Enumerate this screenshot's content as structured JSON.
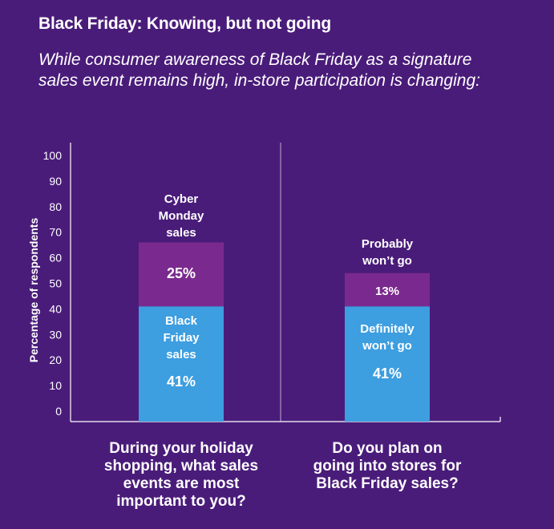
{
  "header": {
    "title": "Black Friday: Knowing, but not going",
    "subtitle": "While consumer awareness of Black Friday as a signature sales event remains high, in-store participation is changing:"
  },
  "colors": {
    "background": "#4a1c7a",
    "bar_bottom": "#3d9ee0",
    "bar_top": "#7a2a8e",
    "axis": "#ffffff",
    "tick_text": "#d8cce6"
  },
  "chart_data": {
    "type": "bar",
    "stacked": true,
    "ylabel": "Percentage of respondents",
    "ylim": [
      0,
      100
    ],
    "yticks": [
      0,
      10,
      20,
      30,
      40,
      50,
      60,
      70,
      80,
      90,
      100
    ],
    "grid": false,
    "categories": [
      "During your holiday shopping, what sales events are most important to you?",
      "Do you plan on going into stores for Black Friday sales?"
    ],
    "series": [
      {
        "segment": "bottom",
        "values": [
          41,
          41
        ],
        "labels": [
          "Black Friday sales",
          "Definitely won't go"
        ],
        "value_labels": [
          "41%",
          "41%"
        ]
      },
      {
        "segment": "top",
        "values": [
          25,
          13
        ],
        "labels": [
          "Cyber Monday sales",
          "Probably won't go"
        ],
        "value_labels": [
          "25%",
          "13%"
        ]
      }
    ]
  }
}
